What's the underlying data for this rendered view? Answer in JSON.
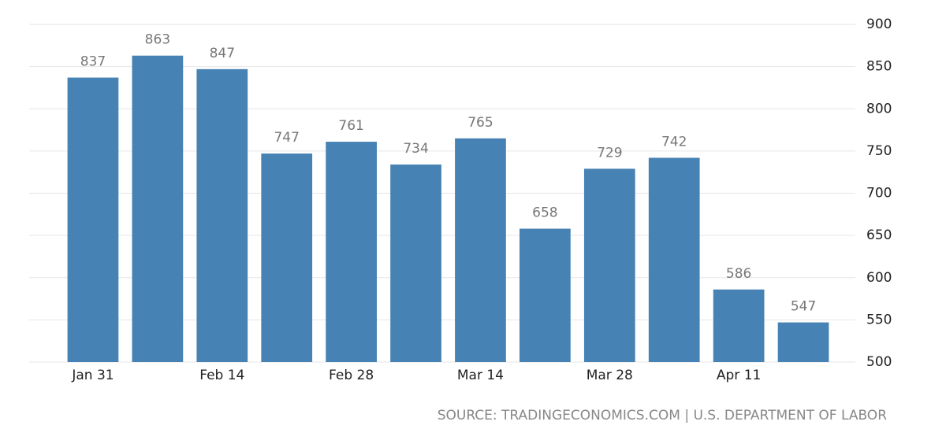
{
  "chart_data": {
    "type": "bar",
    "categories": [
      "Jan 31",
      null,
      "Feb 14",
      null,
      "Feb 28",
      null,
      "Mar 14",
      null,
      "Mar 28",
      null,
      "Apr 11",
      null
    ],
    "values": [
      837,
      863,
      847,
      747,
      761,
      734,
      765,
      658,
      729,
      742,
      586,
      547
    ],
    "color": "#4682b4",
    "ylim": [
      500,
      900
    ],
    "yticks": [
      500,
      550,
      600,
      650,
      700,
      750,
      800,
      850,
      900
    ],
    "grid": true,
    "source": "SOURCE: TRADINGECONOMICS.COM | U.S. DEPARTMENT OF LABOR"
  }
}
